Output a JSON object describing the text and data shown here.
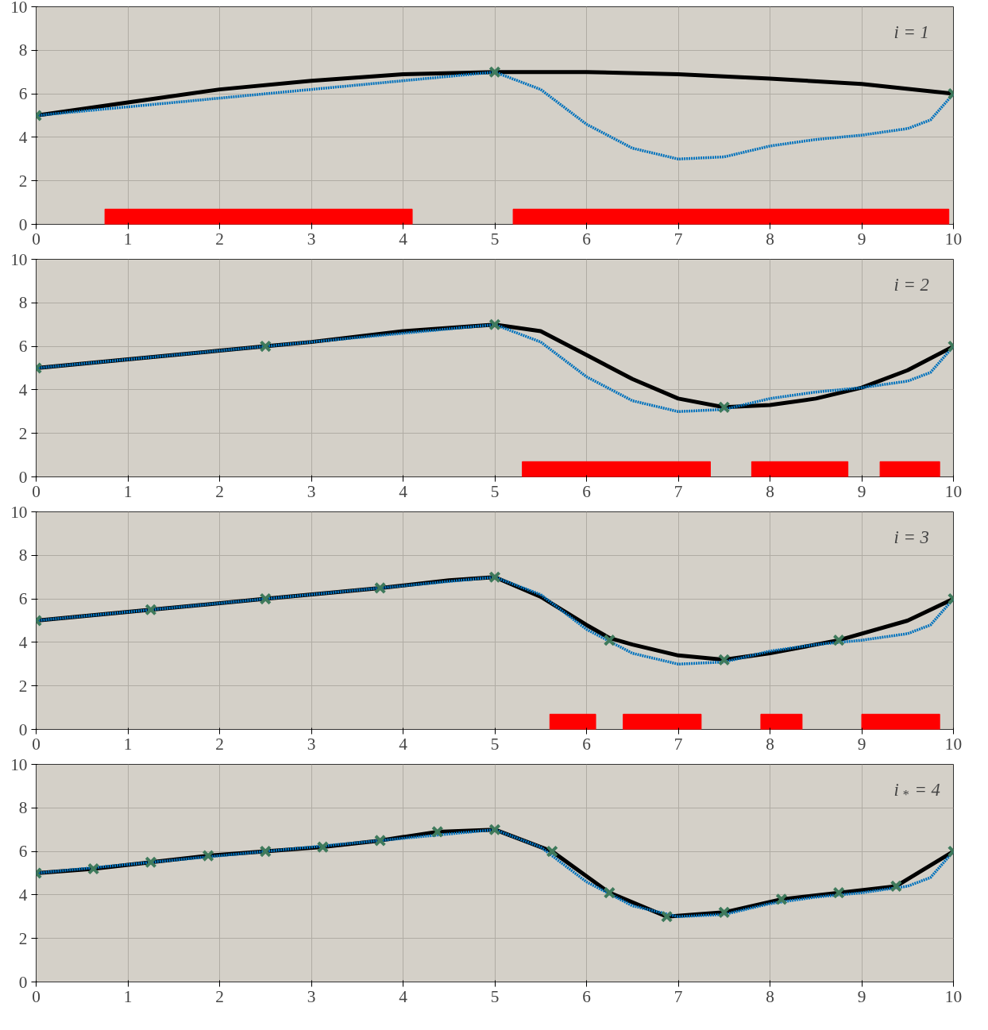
{
  "chart_data": [
    {
      "type": "line",
      "annotations": [
        "i = 1"
      ],
      "xlim": [
        0,
        10
      ],
      "ylim": [
        0,
        10
      ],
      "xticks": [
        0,
        1,
        2,
        3,
        4,
        5,
        6,
        7,
        8,
        9,
        10
      ],
      "yticks": [
        0,
        2,
        4,
        6,
        8,
        10
      ],
      "grid": true,
      "bands": [
        {
          "axis": "x",
          "from": 0.75,
          "to": 4.1,
          "color": "#ff0000"
        },
        {
          "axis": "x",
          "from": 5.2,
          "to": 9.95,
          "color": "#ff0000"
        }
      ],
      "series": [
        {
          "line_style": "dotted",
          "color": "#0072bd",
          "x": [
            0,
            1,
            2,
            3,
            4,
            5,
            5.5,
            6,
            6.5,
            7,
            7.5,
            8,
            8.5,
            9,
            9.5,
            9.75,
            10
          ],
          "values": [
            5,
            5.4,
            5.8,
            6.2,
            6.6,
            7,
            6.2,
            4.6,
            3.5,
            3,
            3.1,
            3.6,
            3.9,
            4.1,
            4.4,
            4.8,
            6
          ]
        },
        {
          "line_style": "solid",
          "color": "#000000",
          "x": [
            0,
            1,
            2,
            3,
            4,
            5,
            6,
            7,
            8,
            9,
            10
          ],
          "values": [
            5,
            5.6,
            6.2,
            6.6,
            6.9,
            7,
            7,
            6.9,
            6.7,
            6.45,
            6
          ]
        },
        {
          "type": "scatter",
          "marker": "cross",
          "color": "#3f7a5c",
          "x": [
            0,
            5,
            10
          ],
          "values": [
            5,
            7,
            6
          ]
        }
      ]
    },
    {
      "type": "line",
      "annotations": [
        "i = 2"
      ],
      "xlim": [
        0,
        10
      ],
      "ylim": [
        0,
        10
      ],
      "xticks": [
        0,
        1,
        2,
        3,
        4,
        5,
        6,
        7,
        8,
        9,
        10
      ],
      "yticks": [
        0,
        2,
        4,
        6,
        8,
        10
      ],
      "grid": true,
      "bands": [
        {
          "axis": "x",
          "from": 5.3,
          "to": 7.35,
          "color": "#ff0000"
        },
        {
          "axis": "x",
          "from": 7.8,
          "to": 8.85,
          "color": "#ff0000"
        },
        {
          "axis": "x",
          "from": 9.2,
          "to": 9.85,
          "color": "#ff0000"
        }
      ],
      "series": [
        {
          "line_style": "dotted",
          "color": "#0072bd",
          "x": [
            0,
            1,
            2,
            3,
            4,
            5,
            5.5,
            6,
            6.5,
            7,
            7.5,
            8,
            8.5,
            9,
            9.5,
            9.75,
            10
          ],
          "values": [
            5,
            5.4,
            5.8,
            6.2,
            6.6,
            7,
            6.2,
            4.6,
            3.5,
            3,
            3.1,
            3.6,
            3.9,
            4.1,
            4.4,
            4.8,
            6
          ]
        },
        {
          "line_style": "solid",
          "color": "#000000",
          "x": [
            0,
            1,
            2,
            2.5,
            3,
            4,
            5,
            5.5,
            6,
            6.5,
            7,
            7.5,
            8,
            8.5,
            9,
            9.5,
            10
          ],
          "values": [
            5,
            5.4,
            5.8,
            6,
            6.2,
            6.7,
            7,
            6.7,
            5.6,
            4.5,
            3.6,
            3.2,
            3.3,
            3.6,
            4.1,
            4.9,
            6
          ]
        },
        {
          "type": "scatter",
          "marker": "cross",
          "color": "#3f7a5c",
          "x": [
            0,
            2.5,
            5,
            7.5,
            10
          ],
          "values": [
            5,
            6,
            7,
            3.2,
            6
          ]
        }
      ]
    },
    {
      "type": "line",
      "annotations": [
        "i = 3"
      ],
      "xlim": [
        0,
        10
      ],
      "ylim": [
        0,
        10
      ],
      "xticks": [
        0,
        1,
        2,
        3,
        4,
        5,
        6,
        7,
        8,
        9,
        10
      ],
      "yticks": [
        0,
        2,
        4,
        6,
        8,
        10
      ],
      "grid": true,
      "bands": [
        {
          "axis": "x",
          "from": 5.6,
          "to": 6.1,
          "color": "#ff0000"
        },
        {
          "axis": "x",
          "from": 6.4,
          "to": 7.25,
          "color": "#ff0000"
        },
        {
          "axis": "x",
          "from": 7.9,
          "to": 8.35,
          "color": "#ff0000"
        },
        {
          "axis": "x",
          "from": 9.0,
          "to": 9.85,
          "color": "#ff0000"
        }
      ],
      "series": [
        {
          "line_style": "dotted",
          "color": "#0072bd",
          "x": [
            0,
            1,
            2,
            3,
            4,
            5,
            5.5,
            6,
            6.5,
            7,
            7.5,
            8,
            8.5,
            9,
            9.5,
            9.75,
            10
          ],
          "values": [
            5,
            5.4,
            5.8,
            6.2,
            6.6,
            7,
            6.2,
            4.6,
            3.5,
            3,
            3.1,
            3.6,
            3.9,
            4.1,
            4.4,
            4.8,
            6
          ]
        },
        {
          "line_style": "solid",
          "color": "#000000",
          "x": [
            0,
            1.25,
            2.5,
            3.75,
            4.5,
            5,
            5.5,
            6,
            6.25,
            6.5,
            7,
            7.5,
            8,
            8.75,
            9.5,
            10
          ],
          "values": [
            5,
            5.5,
            6,
            6.5,
            6.85,
            7,
            6.1,
            4.8,
            4.2,
            3.9,
            3.4,
            3.2,
            3.5,
            4.1,
            5,
            6
          ]
        },
        {
          "type": "scatter",
          "marker": "cross",
          "color": "#3f7a5c",
          "x": [
            0,
            1.25,
            2.5,
            3.75,
            5,
            6.25,
            7.5,
            8.75,
            10
          ],
          "values": [
            5,
            5.5,
            6,
            6.5,
            7,
            4.1,
            3.2,
            4.1,
            6
          ]
        }
      ]
    },
    {
      "type": "line",
      "annotations": [
        "i$_{*}$ = 4"
      ],
      "xlim": [
        0,
        10
      ],
      "ylim": [
        0,
        10
      ],
      "xticks": [
        0,
        1,
        2,
        3,
        4,
        5,
        6,
        7,
        8,
        9,
        10
      ],
      "yticks": [
        0,
        2,
        4,
        6,
        8,
        10
      ],
      "grid": true,
      "series": [
        {
          "line_style": "dotted",
          "color": "#0072bd",
          "x": [
            0,
            1,
            2,
            3,
            4,
            5,
            5.5,
            6,
            6.5,
            7,
            7.5,
            8,
            8.5,
            9,
            9.5,
            9.75,
            10
          ],
          "values": [
            5,
            5.4,
            5.8,
            6.2,
            6.6,
            7,
            6.2,
            4.6,
            3.5,
            3,
            3.1,
            3.6,
            3.9,
            4.1,
            4.4,
            4.8,
            6
          ]
        },
        {
          "line_style": "solid",
          "color": "#000000",
          "x": [
            0,
            0.625,
            1.25,
            1.875,
            2.5,
            3.125,
            3.75,
            4.375,
            5,
            5.625,
            6.25,
            6.875,
            7.5,
            8.125,
            8.75,
            9.375,
            10
          ],
          "values": [
            5,
            5.2,
            5.5,
            5.8,
            6,
            6.2,
            6.5,
            6.9,
            7,
            6,
            4.1,
            3,
            3.2,
            3.8,
            4.1,
            4.4,
            6
          ]
        },
        {
          "type": "scatter",
          "marker": "cross",
          "color": "#3f7a5c",
          "x": [
            0,
            0.625,
            1.25,
            1.875,
            2.5,
            3.125,
            3.75,
            4.375,
            5,
            5.625,
            6.25,
            6.875,
            7.5,
            8.125,
            8.75,
            9.375,
            10
          ],
          "values": [
            5,
            5.2,
            5.5,
            5.8,
            6,
            6.2,
            6.5,
            6.9,
            7,
            6,
            4.1,
            3,
            3.2,
            3.8,
            4.1,
            4.4,
            6
          ]
        }
      ]
    }
  ]
}
